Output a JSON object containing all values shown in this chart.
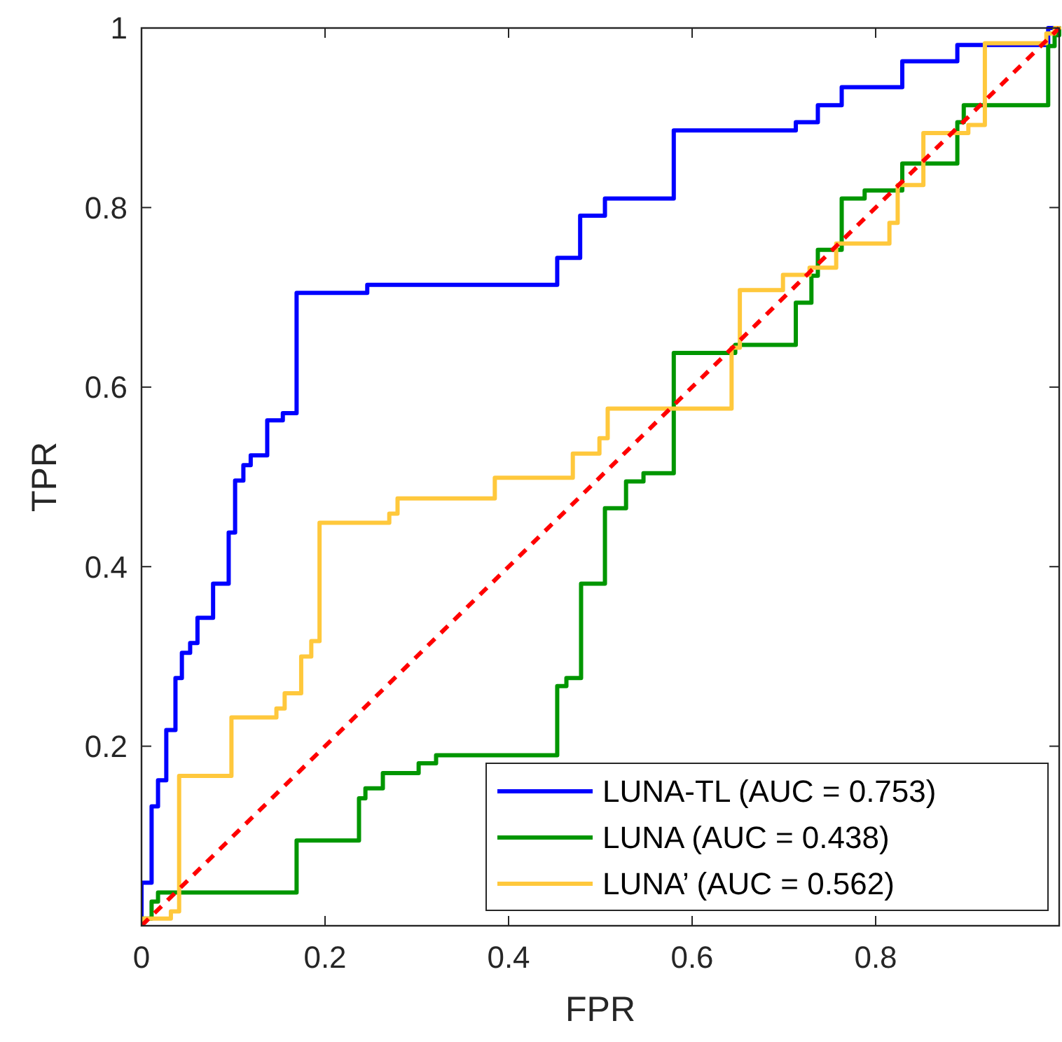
{
  "chart_data": {
    "type": "step",
    "xlabel": "FPR",
    "ylabel": "TPR",
    "xlim": [
      0,
      1
    ],
    "ylim": [
      0,
      1
    ],
    "xticks": [
      0,
      0.2,
      0.4,
      0.6,
      0.8
    ],
    "yticks": [
      0.2,
      0.4,
      0.6,
      0.8,
      1
    ],
    "grid": false,
    "legend": "bottom right",
    "marker": "none",
    "series": [
      {
        "name": "LUNA-TL (AUC = 0.753)",
        "color": "#0000ff",
        "line_style": "solid",
        "x": [
          0,
          0,
          0.011,
          0.018,
          0.027,
          0.037,
          0.044,
          0.053,
          0.061,
          0.078,
          0.095,
          0.102,
          0.111,
          0.119,
          0.137,
          0.154,
          0.169,
          0.246,
          0.453,
          0.478,
          0.505,
          0.58,
          0.713,
          0.737,
          0.763,
          0.829,
          0.889,
          0.988,
          1
        ],
        "values": [
          0,
          0.048,
          0.133,
          0.162,
          0.218,
          0.276,
          0.304,
          0.315,
          0.343,
          0.381,
          0.438,
          0.496,
          0.513,
          0.524,
          0.563,
          0.571,
          0.705,
          0.714,
          0.744,
          0.791,
          0.81,
          0.886,
          0.895,
          0.914,
          0.934,
          0.963,
          0.981,
          1,
          1
        ]
      },
      {
        "name": "LUNA (AUC = 0.438)",
        "color": "#009600",
        "line_style": "solid",
        "x": [
          0,
          0,
          0.011,
          0.018,
          0.169,
          0.237,
          0.244,
          0.263,
          0.302,
          0.321,
          0.453,
          0.463,
          0.479,
          0.505,
          0.528,
          0.547,
          0.58,
          0.647,
          0.713,
          0.73,
          0.737,
          0.763,
          0.788,
          0.829,
          0.889,
          0.896,
          0.988,
          0.995,
          1
        ],
        "values": [
          0,
          0.008,
          0.027,
          0.037,
          0.095,
          0.142,
          0.153,
          0.17,
          0.181,
          0.19,
          0.267,
          0.276,
          0.381,
          0.465,
          0.495,
          0.504,
          0.638,
          0.647,
          0.694,
          0.724,
          0.753,
          0.81,
          0.819,
          0.849,
          0.895,
          0.914,
          0.98,
          0.992,
          1
        ]
      },
      {
        "name": "LUNA’ (AUC = 0.562)",
        "color": "#ffc83c",
        "line_style": "solid",
        "x": [
          0,
          0,
          0.032,
          0.041,
          0.098,
          0.147,
          0.156,
          0.174,
          0.185,
          0.194,
          0.27,
          0.279,
          0.385,
          0.47,
          0.499,
          0.508,
          0.643,
          0.652,
          0.699,
          0.728,
          0.757,
          0.815,
          0.824,
          0.852,
          0.901,
          0.919,
          0.986,
          0.995,
          1
        ],
        "values": [
          0,
          0.008,
          0.016,
          0.167,
          0.232,
          0.242,
          0.259,
          0.3,
          0.317,
          0.449,
          0.459,
          0.476,
          0.499,
          0.526,
          0.543,
          0.576,
          0.644,
          0.708,
          0.725,
          0.733,
          0.76,
          0.783,
          0.825,
          0.883,
          0.892,
          0.983,
          0.994,
          1,
          1
        ]
      },
      {
        "type": "line",
        "color": "#ff0000",
        "line_style": "dashed",
        "x": [
          0,
          1
        ],
        "values": [
          0,
          1
        ]
      }
    ]
  }
}
